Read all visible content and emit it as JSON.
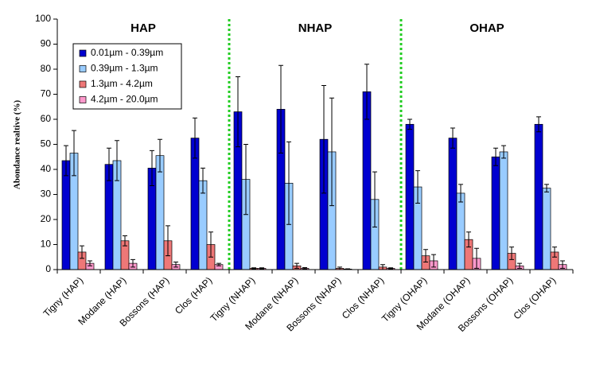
{
  "chart_data": {
    "type": "bar",
    "y_label": "Abondance realtive (%)",
    "sections": [
      "HAP",
      "NHAP",
      "OHAP"
    ],
    "categories": [
      "Tigny (HAP)",
      "Modane (HAP)",
      "Bossons (HAP)",
      "Clos (HAP)",
      "Tigny (NHAP)",
      "Modane (NHAP)",
      "Bossons (NHAP)",
      "Clos (NHAP)",
      "Tigny (OHAP)",
      "Modane (OHAP)",
      "Bossons (OHAP)",
      "Clos (OHAP)"
    ],
    "series": [
      {
        "name": "0.01µm - 0.39µm",
        "color": "#0000d0",
        "values": [
          43.5,
          42,
          40.5,
          52.5,
          63,
          64,
          52,
          71,
          58,
          52.5,
          45,
          58
        ],
        "errors": [
          6,
          6.5,
          7,
          8,
          14,
          17.5,
          21.5,
          11,
          2,
          4,
          3.5,
          3
        ]
      },
      {
        "name": "0.39µm - 1.3µm",
        "color": "#99ccff",
        "values": [
          46.5,
          43.5,
          45.5,
          35.5,
          36,
          34.5,
          47,
          28,
          33,
          30.5,
          47,
          32.5
        ],
        "errors": [
          9,
          8,
          6.5,
          5,
          14,
          16.5,
          21.5,
          11,
          6.5,
          3.5,
          2.5,
          1.5
        ]
      },
      {
        "name": "1.3µm - 4.2µm",
        "color": "#ee7777",
        "values": [
          7,
          11.5,
          11.5,
          10,
          0.5,
          1.5,
          0.5,
          1,
          5.5,
          12,
          6.5,
          7
        ],
        "errors": [
          2.5,
          2,
          6,
          5,
          0.2,
          1,
          0.5,
          1,
          2.5,
          3,
          2.5,
          2
        ]
      },
      {
        "name": "4.2µm - 20.0µm",
        "color": "#ff99cc",
        "values": [
          2.5,
          2.5,
          2,
          2,
          0.5,
          0.5,
          0.2,
          0.5,
          3.5,
          4.5,
          1.5,
          2
        ],
        "errors": [
          1,
          1.5,
          1,
          0.5,
          0.2,
          0.3,
          0.1,
          0.2,
          2.5,
          4,
          1,
          1.5
        ]
      }
    ],
    "ylim": [
      0,
      100
    ],
    "yticks": [
      0,
      10,
      20,
      30,
      40,
      50,
      60,
      70,
      80,
      90,
      100
    ],
    "divider_color": "#22cc22",
    "legend": "upper left"
  }
}
